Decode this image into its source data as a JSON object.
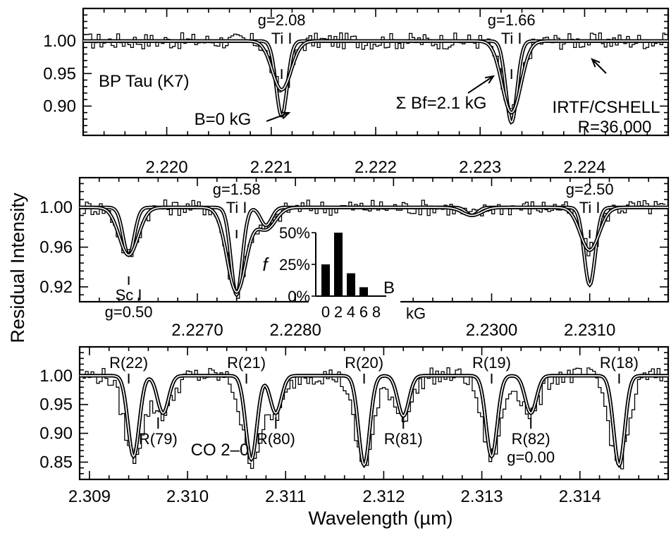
{
  "figure": {
    "ylabel": "Residual Intensity",
    "xlabel": "Wavelength (µm)"
  },
  "chart_data": [
    {
      "type": "line",
      "panel": "top",
      "xlim": [
        2.2192,
        2.2248
      ],
      "ylim": [
        0.855,
        1.05
      ],
      "xticks": [
        2.22,
        2.221,
        2.222,
        2.223,
        2.224
      ],
      "xtick_labels": [
        "2.220",
        "2.221",
        "2.222",
        "2.223",
        "2.224"
      ],
      "yticks": [
        0.9,
        0.95,
        1.0
      ],
      "ytick_labels": [
        "0.90",
        "0.95",
        "1.00"
      ],
      "xtick_labels_position": "below",
      "lines": [
        {
          "species": "Ti I",
          "g_label": "g=2.08",
          "center": 2.2211
        },
        {
          "species": "Ti I",
          "g_label": "g=1.66",
          "center": 2.2233
        }
      ],
      "annotations": {
        "star": "BP Tau (K7)",
        "model_b0": "B=0 kG",
        "model_bf": "Σ Bf=2.1 kG",
        "instrument": "IRTF/CSHELL",
        "resolution": "R=36,000"
      },
      "absorption": [
        {
          "center": 2.2211,
          "depth_b0": 0.115,
          "depth_mag": 0.075
        },
        {
          "center": 2.2233,
          "depth_b0": 0.125,
          "depth_mag": 0.11
        }
      ]
    },
    {
      "type": "line",
      "panel": "middle",
      "xlim": [
        2.2258,
        2.2318
      ],
      "ylim": [
        0.905,
        1.03
      ],
      "xticks": [
        2.227,
        2.228,
        2.229,
        2.23,
        2.231
      ],
      "xtick_labels": [
        "2.2270",
        "2.2280",
        "",
        "2.2300",
        "2.2310"
      ],
      "yticks": [
        0.92,
        0.96,
        1.0
      ],
      "ytick_labels": [
        "0.92",
        "0.96",
        "1.00"
      ],
      "xtick_labels_position": "below",
      "lines": [
        {
          "species": "Sc I",
          "g_label": "g=0.50",
          "center": 2.2263
        },
        {
          "species": "Ti I",
          "g_label": "g=1.58",
          "center": 2.2274
        },
        {
          "species": "Ti I",
          "g_label": "g=2.50",
          "center": 2.231
        }
      ],
      "absorption": [
        {
          "center": 2.2263,
          "depth_b0": 0.048,
          "depth_mag": 0.048
        },
        {
          "center": 2.2274,
          "depth_b0": 0.088,
          "depth_mag": 0.085
        },
        {
          "center": 2.2277,
          "depth_b0": 0.018,
          "depth_mag": 0.022
        },
        {
          "center": 2.2298,
          "depth_b0": 0.008,
          "depth_mag": 0.008
        },
        {
          "center": 2.231,
          "depth_b0": 0.078,
          "depth_mag": 0.043
        }
      ],
      "inset": {
        "type": "bar",
        "ylabel": "f",
        "xlabel": "kG",
        "title": "B",
        "categories": [
          0,
          2,
          4,
          6,
          8
        ],
        "category_labels": [
          "0",
          "2",
          "4",
          "6",
          "8"
        ],
        "values": [
          25,
          50,
          18,
          7,
          0
        ],
        "ylim": [
          0,
          50
        ],
        "yticks": [
          0,
          25,
          50
        ],
        "ytick_labels": [
          "0%",
          "25%",
          "50%"
        ]
      }
    },
    {
      "type": "line",
      "panel": "bottom",
      "xlim": [
        2.3089,
        2.3149
      ],
      "ylim": [
        0.82,
        1.05
      ],
      "xticks": [
        2.309,
        2.31,
        2.311,
        2.312,
        2.313,
        2.314
      ],
      "xtick_labels": [
        "2.309",
        "2.310",
        "2.311",
        "2.312",
        "2.313",
        "2.314"
      ],
      "yticks": [
        0.85,
        0.9,
        0.95,
        1.0
      ],
      "ytick_labels": [
        "0.85",
        "0.90",
        "0.95",
        "1.00"
      ],
      "xtick_labels_position": "below",
      "band_label": "CO 2–0",
      "lines": [
        {
          "label": "R(22)",
          "center": 2.3094,
          "side": "top"
        },
        {
          "label": "R(21)",
          "center": 2.3106,
          "side": "top"
        },
        {
          "label": "R(20)",
          "center": 2.3118,
          "side": "top"
        },
        {
          "label": "R(19)",
          "center": 2.3131,
          "side": "top"
        },
        {
          "label": "R(18)",
          "center": 2.3144,
          "side": "top"
        },
        {
          "label": "R(79)",
          "center": 2.3097,
          "side": "bottom"
        },
        {
          "label": "R(80)",
          "center": 2.3109,
          "side": "bottom"
        },
        {
          "label": "R(81)",
          "center": 2.3122,
          "side": "bottom"
        },
        {
          "label": "R(82)",
          "center": 2.3135,
          "side": "bottom",
          "g_label": "g=0.00"
        }
      ],
      "absorption": [
        {
          "center": 2.30945,
          "depth_b0": 0.14,
          "depth_mag": 0.14
        },
        {
          "center": 2.30975,
          "depth_b0": 0.065,
          "depth_mag": 0.065
        },
        {
          "center": 2.31065,
          "depth_b0": 0.145,
          "depth_mag": 0.145
        },
        {
          "center": 2.3109,
          "depth_b0": 0.065,
          "depth_mag": 0.065
        },
        {
          "center": 2.3118,
          "depth_b0": 0.155,
          "depth_mag": 0.155
        },
        {
          "center": 2.3122,
          "depth_b0": 0.07,
          "depth_mag": 0.07
        },
        {
          "center": 2.3131,
          "depth_b0": 0.14,
          "depth_mag": 0.14
        },
        {
          "center": 2.3135,
          "depth_b0": 0.065,
          "depth_mag": 0.065
        },
        {
          "center": 2.3144,
          "depth_b0": 0.155,
          "depth_mag": 0.155
        }
      ]
    }
  ]
}
